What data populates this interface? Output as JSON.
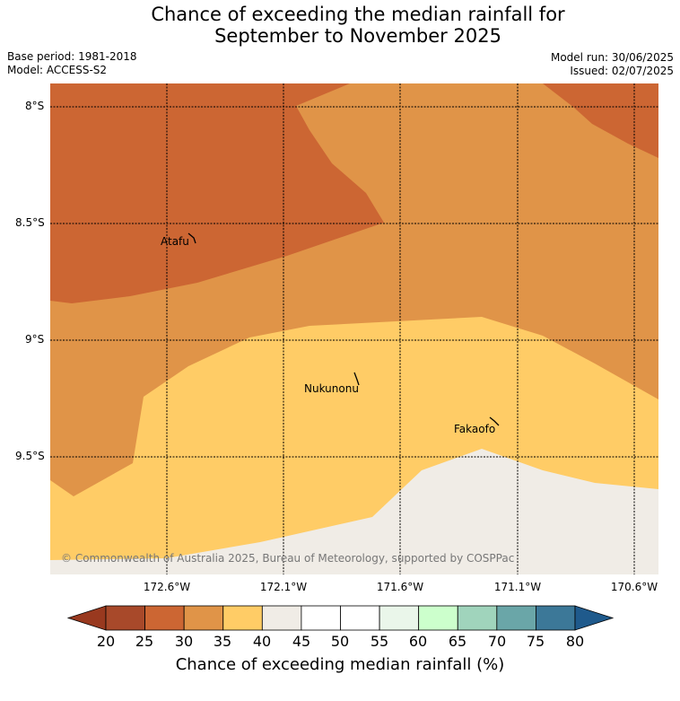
{
  "title_line1": "Chance of exceeding the median rainfall for",
  "title_line2": "September to November 2025",
  "meta": {
    "base_period": "Base period: 1981-2018",
    "model": "Model: ACCESS-S2",
    "model_run": "Model run: 30/06/2025",
    "issued": "Issued: 02/07/2025"
  },
  "map": {
    "latitude_labels": [
      "8°S",
      "8.5°S",
      "9°S",
      "9.5°S"
    ],
    "longitude_labels": [
      "172.6°W",
      "172.1°W",
      "171.6°W",
      "171.1°W",
      "170.6°W"
    ],
    "places": [
      {
        "name": "Atafu"
      },
      {
        "name": "Nukunonu"
      },
      {
        "name": "Fakaofo"
      }
    ],
    "copyright": "© Commonwealth of Australia 2025, Bureau of Meteorology, supported by COSPPac",
    "colors": {
      "25_30": "#cc6633",
      "30_35": "#e09448",
      "35_40": "#ffcc66",
      "40_45": "#f0ece6"
    }
  },
  "colorbar": {
    "ticks": [
      "20",
      "25",
      "30",
      "35",
      "40",
      "45",
      "50",
      "55",
      "60",
      "65",
      "70",
      "75",
      "80"
    ],
    "colors": [
      "#a8492a",
      "#cc6633",
      "#e09448",
      "#ffcc66",
      "#f0ece6",
      "#ffffff",
      "#ffffff",
      "#eaf6ea",
      "#ccffcc",
      "#a0d4bc",
      "#6aa6a8",
      "#3c7898"
    ],
    "under_color": "#99391f",
    "over_color": "#1f5a8c",
    "label": "Chance of exceeding median rainfall (%)"
  }
}
